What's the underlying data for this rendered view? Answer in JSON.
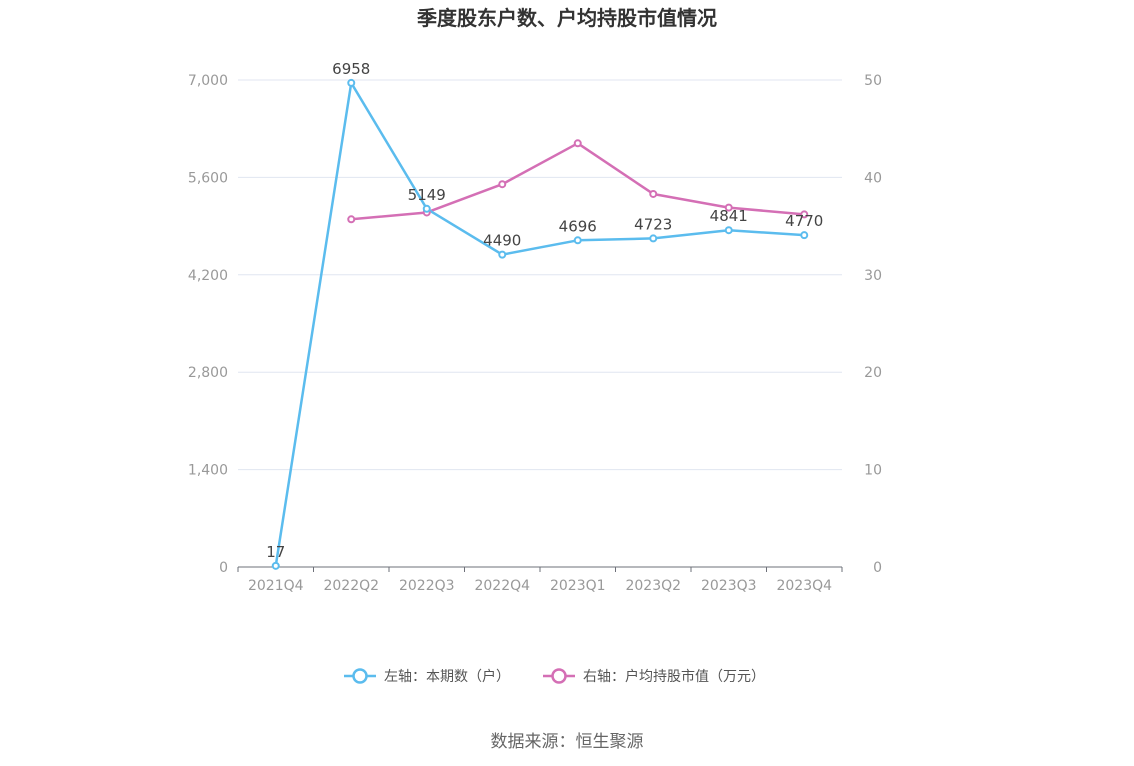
{
  "chart_data": {
    "type": "line",
    "title": "季度股东户数、户均持股市值情况",
    "categories": [
      "2021Q4",
      "2022Q2",
      "2022Q3",
      "2022Q4",
      "2023Q1",
      "2023Q2",
      "2023Q3",
      "2023Q4"
    ],
    "y_left": {
      "ticks": [
        "0",
        "1,400",
        "2,800",
        "4,200",
        "5,600",
        "7,000"
      ],
      "range": [
        0,
        7000
      ]
    },
    "y_right": {
      "ticks": [
        "0",
        "10",
        "20",
        "30",
        "40",
        "50"
      ],
      "range": [
        0,
        50
      ]
    },
    "grid": true,
    "legend_position": "bottom",
    "series": [
      {
        "name": "左轴：本期数（户）",
        "axis": "left",
        "color": "#5bbcee",
        "values": [
          17,
          6958,
          5149,
          4490,
          4696,
          4723,
          4841,
          4770
        ],
        "labels": [
          "17",
          "6958",
          "5149",
          "4490",
          "4696",
          "4723",
          "4841",
          "4770"
        ]
      },
      {
        "name": "右轴：户均持股市值（万元）",
        "axis": "right",
        "color": "#d46fb5",
        "values": [
          null,
          35.7,
          36.4,
          39.3,
          43.5,
          38.3,
          36.9,
          36.2
        ]
      }
    ]
  },
  "source_text": "数据来源：恒生聚源"
}
